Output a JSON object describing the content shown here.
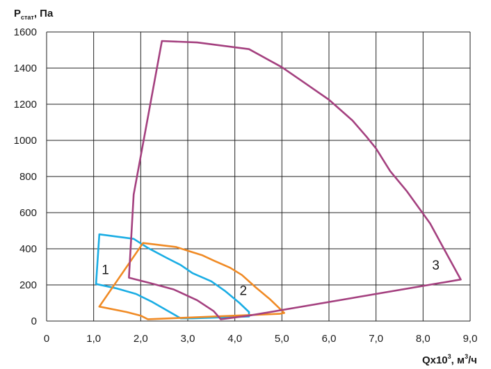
{
  "chart_data": {
    "type": "line",
    "ylabel": {
      "main": "P",
      "sub": "стат",
      "rest": ", Па"
    },
    "xlabel": {
      "main": "Qx10",
      "sup": "3",
      "mid": ", м",
      "sup2": "3",
      "rest": "/ч"
    },
    "xlim": [
      0,
      9
    ],
    "ylim": [
      0,
      1600
    ],
    "x_ticks": [
      "0",
      "1,0",
      "2,0",
      "3,0",
      "4,0",
      "5,0",
      "6,0",
      "7,0",
      "8,0",
      "9,0"
    ],
    "y_ticks": [
      "0",
      "200",
      "400",
      "600",
      "800",
      "1000",
      "1200",
      "1400",
      "1600"
    ],
    "grid": true,
    "legend": "none",
    "series": [
      {
        "name": "1",
        "color": "#1AADE4",
        "closed": true,
        "points": [
          [
            1.12,
            480
          ],
          [
            1.85,
            455
          ],
          [
            2.15,
            405
          ],
          [
            2.55,
            350
          ],
          [
            2.85,
            310
          ],
          [
            3.1,
            265
          ],
          [
            3.5,
            220
          ],
          [
            3.8,
            165
          ],
          [
            4.1,
            100
          ],
          [
            4.3,
            50
          ],
          [
            4.3,
            25
          ],
          [
            3.1,
            15
          ],
          [
            2.85,
            15
          ],
          [
            2.55,
            60
          ],
          [
            2.25,
            105
          ],
          [
            1.9,
            150
          ],
          [
            1.5,
            180
          ],
          [
            1.05,
            205
          ]
        ]
      },
      {
        "name": "2",
        "color": "#F08A24",
        "closed": true,
        "points": [
          [
            2.05,
            432
          ],
          [
            2.75,
            410
          ],
          [
            3.05,
            385
          ],
          [
            3.3,
            365
          ],
          [
            3.55,
            335
          ],
          [
            3.9,
            295
          ],
          [
            4.15,
            255
          ],
          [
            4.45,
            185
          ],
          [
            4.75,
            120
          ],
          [
            5.05,
            45
          ],
          [
            4.95,
            40
          ],
          [
            2.15,
            10
          ],
          [
            2.0,
            30
          ],
          [
            1.7,
            50
          ],
          [
            1.12,
            80
          ]
        ]
      },
      {
        "name": "3",
        "color": "#A4407F",
        "closed": true,
        "points": [
          [
            2.45,
            1550
          ],
          [
            3.2,
            1542
          ],
          [
            4.3,
            1505
          ],
          [
            5.0,
            1405
          ],
          [
            5.5,
            1315
          ],
          [
            6.0,
            1225
          ],
          [
            6.5,
            1110
          ],
          [
            6.8,
            1020
          ],
          [
            7.0,
            955
          ],
          [
            7.3,
            830
          ],
          [
            7.65,
            720
          ],
          [
            8.15,
            540
          ],
          [
            8.4,
            420
          ],
          [
            8.8,
            230
          ],
          [
            4.3,
            30
          ],
          [
            3.7,
            10
          ],
          [
            3.55,
            55
          ],
          [
            3.2,
            115
          ],
          [
            2.7,
            175
          ],
          [
            2.2,
            210
          ],
          [
            1.75,
            240
          ],
          [
            1.85,
            700
          ]
        ]
      }
    ],
    "labels": [
      {
        "text": "1",
        "x": 1.25,
        "y": 260
      },
      {
        "text": "2",
        "x": 4.18,
        "y": 145
      },
      {
        "text": "3",
        "x": 8.27,
        "y": 285
      }
    ]
  }
}
